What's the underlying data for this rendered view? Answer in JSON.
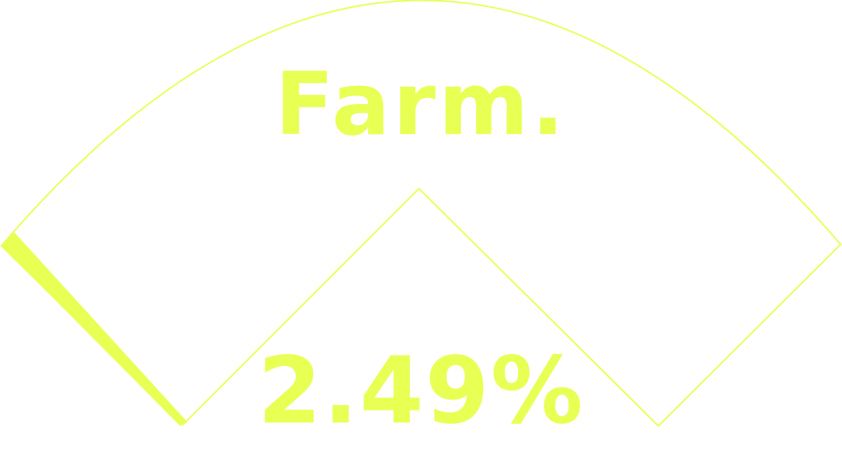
{
  "brand": {
    "title": "Farm."
  },
  "gauge": {
    "value_label": "2.49%",
    "fraction": 0.0249
  },
  "colors": {
    "accent": "#e8ff54",
    "background": "#ffffff"
  }
}
